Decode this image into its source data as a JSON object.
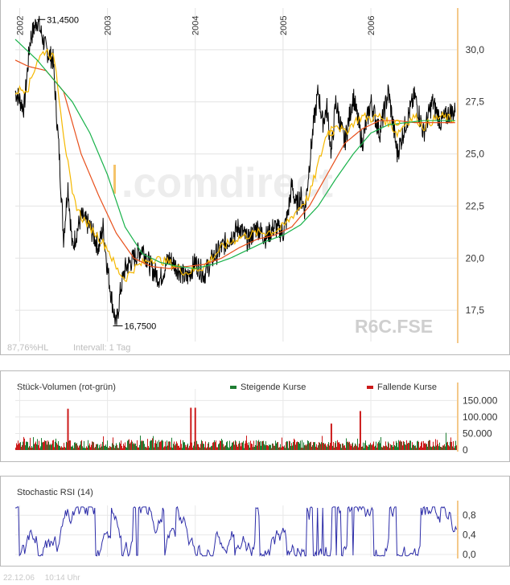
{
  "chart_data": [
    {
      "type": "line",
      "title": "",
      "symbol": "R6C.FSE",
      "watermark": ".comdirect",
      "x_ticks": [
        "2002",
        "2003",
        "2004",
        "2005",
        "2006"
      ],
      "y_ticks": [
        "30,0",
        "27,5",
        "25,0",
        "22,5",
        "20,0",
        "17,5"
      ],
      "ylim": [
        16,
        32
      ],
      "annotations": {
        "high_label": "31,4500",
        "high_value": 31.45,
        "low_label": "16,7500",
        "low_value": 16.75
      },
      "footer_left": "87,76%HL",
      "footer_interval": "Intervall: 1 Tag",
      "series": [
        {
          "name": "",
          "color": "#000000",
          "x": [
            2001.95,
            2002.05,
            2002.12,
            2002.2,
            2002.3,
            2002.38,
            2002.45,
            2002.5,
            2002.55,
            2002.6,
            2002.7,
            2002.8,
            2002.9,
            2002.95,
            2003.0,
            2003.05,
            2003.1,
            2003.15,
            2003.2,
            2003.3,
            2003.4,
            2003.5,
            2003.6,
            2003.7,
            2003.8,
            2003.9,
            2004.0,
            2004.1,
            2004.2,
            2004.3,
            2004.4,
            2004.5,
            2004.6,
            2004.7,
            2004.8,
            2004.9,
            2005.0,
            2005.05,
            2005.1,
            2005.15,
            2005.2,
            2005.25,
            2005.3,
            2005.35,
            2005.4,
            2005.45,
            2005.5,
            2005.55,
            2005.6,
            2005.7,
            2005.8,
            2005.9,
            2006.0,
            2006.1,
            2006.2,
            2006.3,
            2006.4,
            2006.5,
            2006.6,
            2006.7,
            2006.8,
            2006.9,
            2006.96
          ],
          "values": [
            28.0,
            27.2,
            30.5,
            31.45,
            30.0,
            29.5,
            25.0,
            21.0,
            23.5,
            20.5,
            22.0,
            21.5,
            20.5,
            21.5,
            19.5,
            18.0,
            16.75,
            18.5,
            19.5,
            20.0,
            20.5,
            19.5,
            19.0,
            20.0,
            19.5,
            19.0,
            19.8,
            19.2,
            20.0,
            20.5,
            21.0,
            21.5,
            20.8,
            21.5,
            21.0,
            21.5,
            21.2,
            22.0,
            23.5,
            22.5,
            23.0,
            22.3,
            24.5,
            26.5,
            28.0,
            26.5,
            27.2,
            25.0,
            27.5,
            25.5,
            27.8,
            25.5,
            27.5,
            26.0,
            28.0,
            25.0,
            26.5,
            27.8,
            26.0,
            27.5,
            26.5,
            27.0,
            27.0
          ]
        },
        {
          "name": "",
          "color": "#f5b800",
          "x": [
            2001.95,
            2002.1,
            2002.2,
            2002.3,
            2002.4,
            2002.5,
            2002.6,
            2002.7,
            2002.8,
            2002.9,
            2003.0,
            2003.1,
            2003.2,
            2003.3,
            2003.5,
            2003.7,
            2003.9,
            2004.1,
            2004.3,
            2004.5,
            2004.7,
            2004.9,
            2005.0,
            2005.1,
            2005.2,
            2005.3,
            2005.4,
            2005.5,
            2005.6,
            2005.7,
            2005.8,
            2005.9,
            2006.0,
            2006.1,
            2006.2,
            2006.3,
            2006.4,
            2006.5,
            2006.6,
            2006.7,
            2006.8,
            2006.96
          ],
          "values": [
            28.0,
            28.2,
            29.5,
            30.0,
            29.5,
            26.0,
            23.0,
            22.0,
            21.5,
            21.0,
            20.5,
            19.5,
            19.0,
            19.5,
            20.0,
            19.8,
            19.3,
            19.6,
            20.5,
            21.0,
            21.2,
            21.3,
            21.5,
            22.0,
            22.5,
            23.0,
            24.5,
            26.0,
            26.5,
            26.0,
            26.5,
            26.8,
            26.7,
            26.8,
            26.5,
            26.0,
            26.5,
            26.8,
            26.3,
            26.6,
            26.8,
            26.6
          ]
        },
        {
          "name": "",
          "color": "#e8501c",
          "x": [
            2001.95,
            2002.1,
            2002.3,
            2002.5,
            2002.7,
            2002.9,
            2003.1,
            2003.3,
            2003.5,
            2003.7,
            2003.9,
            2004.1,
            2004.3,
            2004.5,
            2004.7,
            2004.9,
            2005.1,
            2005.3,
            2005.5,
            2005.7,
            2005.9,
            2006.1,
            2006.3,
            2006.5,
            2006.7,
            2006.96
          ],
          "values": [
            29.5,
            29.2,
            29.0,
            28.0,
            25.0,
            23.0,
            21.2,
            20.0,
            19.6,
            19.5,
            19.6,
            19.7,
            20.0,
            20.5,
            20.9,
            21.1,
            21.5,
            22.5,
            24.0,
            25.5,
            26.2,
            26.6,
            26.6,
            26.5,
            26.5,
            26.5
          ]
        },
        {
          "name": "",
          "color": "#18b24a",
          "x": [
            2001.95,
            2002.2,
            2002.4,
            2002.6,
            2002.8,
            2003.0,
            2003.2,
            2003.4,
            2003.6,
            2003.8,
            2004.0,
            2004.2,
            2004.4,
            2004.6,
            2004.8,
            2005.0,
            2005.2,
            2005.4,
            2005.6,
            2005.8,
            2006.0,
            2006.2,
            2006.4,
            2006.6,
            2006.8,
            2006.96
          ],
          "values": [
            30.5,
            29.5,
            28.5,
            27.5,
            26.0,
            24.0,
            21.5,
            20.2,
            19.8,
            19.6,
            19.5,
            19.7,
            20.0,
            20.4,
            20.8,
            21.1,
            21.6,
            22.5,
            23.8,
            25.0,
            26.0,
            26.4,
            26.5,
            26.6,
            26.6,
            26.6
          ]
        }
      ]
    },
    {
      "type": "bar",
      "title": "Stück-Volumen (rot-grün)",
      "legend": [
        {
          "name": "Steigende Kurse",
          "color": "#1e7d32"
        },
        {
          "name": "Fallende Kurse",
          "color": "#cc1a1a"
        }
      ],
      "y_ticks": [
        "150.000",
        "100.000",
        "50.000",
        "0"
      ],
      "ylim": [
        0,
        185000
      ],
      "spikes": [
        {
          "x": 2002.55,
          "value": 125000
        },
        {
          "x": 2003.95,
          "value": 128000
        },
        {
          "x": 2004.0,
          "value": 128000
        },
        {
          "x": 2005.55,
          "value": 80000
        },
        {
          "x": 2005.88,
          "value": 118000
        }
      ],
      "baseline_level": 28000
    },
    {
      "type": "line",
      "title": "Stochastic RSI (14)",
      "y_ticks": [
        "0,8",
        "0,4",
        "0,0"
      ],
      "ylim": [
        -0.05,
        1.0
      ],
      "color": "#2d2da8"
    }
  ],
  "footer": {
    "date": "22.12.06",
    "time": "10:14 Uhr"
  }
}
